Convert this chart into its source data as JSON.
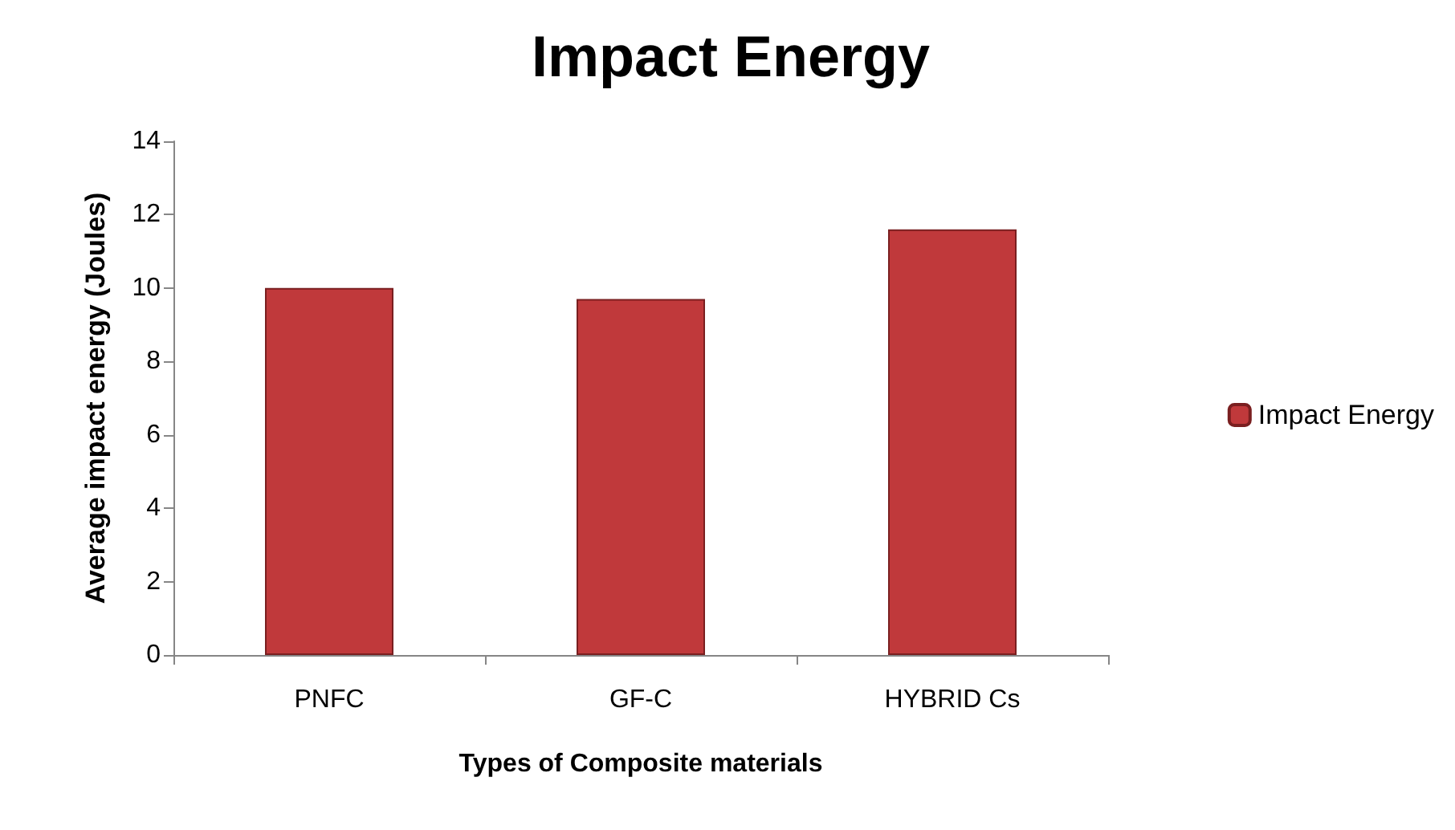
{
  "chart_data": {
    "type": "bar",
    "title": "Impact Energy",
    "xlabel": "Types of Composite materials",
    "ylabel": "Average impact energy (Joules)",
    "categories": [
      "PNFC",
      "GF-C",
      "HYBRID Cs"
    ],
    "series": [
      {
        "name": "Impact Energy",
        "color": "#c0393b",
        "values": [
          10.0,
          9.7,
          11.6
        ]
      }
    ],
    "ylim": [
      0,
      14
    ],
    "yticks": [
      0,
      2,
      4,
      6,
      8,
      10,
      12,
      14
    ],
    "grid": false,
    "legend": "right"
  }
}
